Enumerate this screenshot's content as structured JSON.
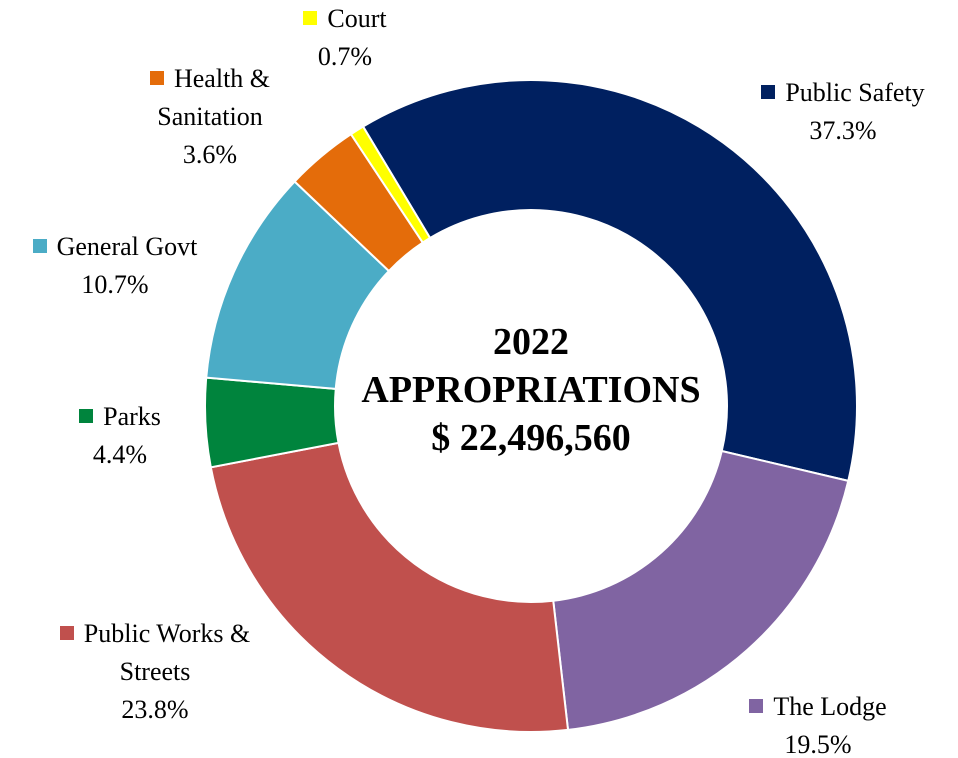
{
  "chart_data": {
    "type": "donut",
    "title": "2022 APPROPRIATIONS",
    "annotation": "$ 22,496,560",
    "categories": [
      "Public Safety",
      "The Lodge",
      "Public Works & Streets",
      "Parks",
      "General Govt",
      "Health & Sanitation",
      "Court"
    ],
    "values": [
      37.3,
      19.5,
      23.8,
      4.4,
      10.7,
      3.6,
      0.7
    ],
    "value_labels": [
      "37.3%",
      "19.5%",
      "23.8%",
      "4.4%",
      "10.7%",
      "3.6%",
      "0.7%"
    ],
    "colors": [
      "#002060",
      "#8064a2",
      "#c0504d",
      "#00843d",
      "#4bacc6",
      "#e46c0a",
      "#ffff00"
    ]
  }
}
